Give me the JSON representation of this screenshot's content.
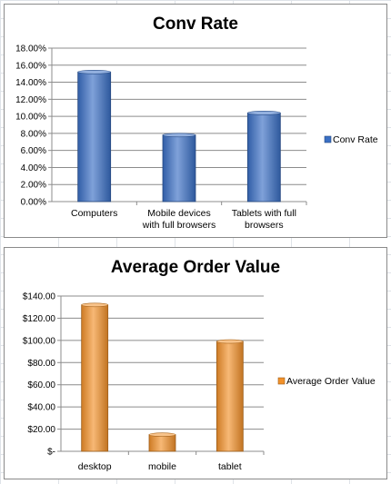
{
  "chart_data": [
    {
      "type": "bar",
      "title": "Conv Rate",
      "categories": [
        "Computers",
        "Mobile devices with full browsers",
        "Tablets with full browsers"
      ],
      "category_lines": [
        [
          "Computers"
        ],
        [
          "Mobile devices",
          "with full browsers"
        ],
        [
          "Tablets with full",
          "browsers"
        ]
      ],
      "series": [
        {
          "name": "Conv Rate",
          "values": [
            0.152,
            0.078,
            0.104
          ],
          "color": "#3a6fc4"
        }
      ],
      "yticks": [
        "0.00%",
        "2.00%",
        "4.00%",
        "6.00%",
        "8.00%",
        "10.00%",
        "12.00%",
        "14.00%",
        "16.00%",
        "18.00%"
      ],
      "ylim": [
        0,
        0.18
      ],
      "grid": true,
      "legend": "right"
    },
    {
      "type": "bar",
      "title": "Average Order Value",
      "categories": [
        "desktop",
        "mobile",
        "tablet"
      ],
      "category_lines": [
        [
          "desktop"
        ],
        [
          "mobile"
        ],
        [
          "tablet"
        ]
      ],
      "series": [
        {
          "name": "Average Order Value",
          "values": [
            132,
            15,
            99
          ],
          "color": "#f2912a"
        }
      ],
      "yticks": [
        "$-",
        "$20.00",
        "$40.00",
        "$60.00",
        "$80.00",
        "$100.00",
        "$120.00",
        "$140.00"
      ],
      "ylim": [
        0,
        140
      ],
      "grid": true,
      "legend": "right"
    }
  ]
}
